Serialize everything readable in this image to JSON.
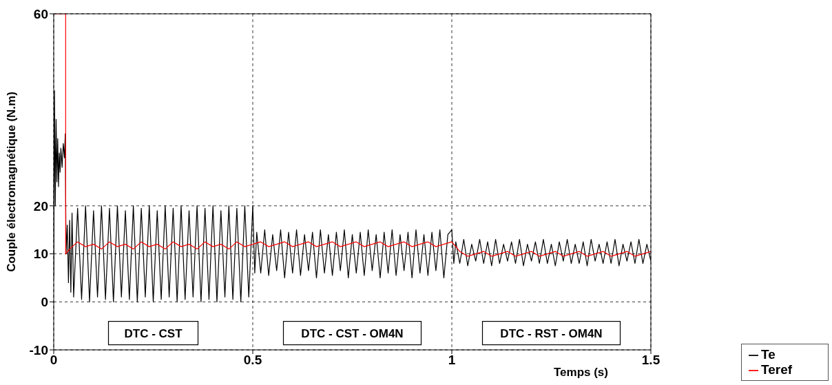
{
  "chart_data": {
    "type": "line",
    "xlabel": "Temps (s)",
    "ylabel": "Couple électromagnétique (N.m)",
    "xlim": [
      0,
      1.5
    ],
    "xticks": [
      0,
      0.5,
      1,
      1.5
    ],
    "ylim": [
      -10,
      60
    ],
    "yticks": [
      -10,
      0,
      10,
      20,
      60
    ],
    "grid": true,
    "line_style": "solid",
    "marker": "none",
    "legend": "bottom right",
    "series": [
      {
        "name": "Te",
        "color": "#000000",
        "x": [
          0,
          0.002,
          0.004,
          0.006,
          0.008,
          0.01,
          0.012,
          0.014,
          0.016,
          0.018,
          0.021,
          0.024,
          0.027,
          0.029,
          0.031,
          0.034,
          0.037,
          0.04,
          0.043,
          0.046,
          0.05,
          0.06,
          0.07,
          0.08,
          0.09,
          0.1,
          0.11,
          0.12,
          0.13,
          0.14,
          0.15,
          0.16,
          0.17,
          0.18,
          0.19,
          0.2,
          0.21,
          0.22,
          0.23,
          0.24,
          0.25,
          0.26,
          0.27,
          0.28,
          0.29,
          0.3,
          0.31,
          0.32,
          0.33,
          0.34,
          0.35,
          0.36,
          0.37,
          0.38,
          0.39,
          0.4,
          0.41,
          0.42,
          0.43,
          0.44,
          0.45,
          0.46,
          0.47,
          0.48,
          0.49,
          0.5,
          0.505,
          0.51,
          0.52,
          0.53,
          0.54,
          0.55,
          0.56,
          0.57,
          0.58,
          0.59,
          0.6,
          0.61,
          0.62,
          0.63,
          0.64,
          0.65,
          0.66,
          0.67,
          0.68,
          0.69,
          0.7,
          0.71,
          0.72,
          0.73,
          0.74,
          0.75,
          0.76,
          0.77,
          0.78,
          0.79,
          0.8,
          0.81,
          0.82,
          0.83,
          0.84,
          0.85,
          0.86,
          0.87,
          0.88,
          0.89,
          0.9,
          0.91,
          0.92,
          0.93,
          0.94,
          0.95,
          0.96,
          0.97,
          0.98,
          0.99,
          1,
          1.005,
          1.01,
          1.02,
          1.03,
          1.04,
          1.05,
          1.06,
          1.07,
          1.08,
          1.09,
          1.1,
          1.11,
          1.12,
          1.13,
          1.14,
          1.15,
          1.16,
          1.17,
          1.18,
          1.19,
          1.2,
          1.21,
          1.22,
          1.23,
          1.24,
          1.25,
          1.26,
          1.27,
          1.28,
          1.29,
          1.3,
          1.31,
          1.32,
          1.33,
          1.34,
          1.35,
          1.36,
          1.37,
          1.38,
          1.39,
          1.4,
          1.41,
          1.42,
          1.43,
          1.44,
          1.45,
          1.46,
          1.47,
          1.48,
          1.49,
          1.5
        ],
        "values": [
          5,
          44,
          20,
          38,
          25,
          34,
          24,
          31,
          27,
          32,
          28,
          33,
          30,
          35,
          10,
          16,
          4,
          17,
          2,
          18.5,
          1,
          19.5,
          0.5,
          20,
          0,
          19,
          1,
          20,
          0.5,
          19.5,
          0,
          20,
          1,
          19,
          0.5,
          20,
          0,
          19.5,
          1,
          20,
          0,
          19,
          0.5,
          20,
          1,
          19.5,
          0,
          20,
          0.5,
          19,
          1,
          20,
          0,
          19.5,
          0.5,
          20,
          0,
          19,
          1,
          20,
          0.5,
          19.5,
          0,
          20,
          1,
          20,
          6,
          14.5,
          6,
          15,
          5.5,
          14,
          6.5,
          15,
          5,
          14.5,
          6,
          15,
          5.5,
          14,
          6.5,
          14.5,
          5,
          15,
          6,
          14,
          5.5,
          14.5,
          6.5,
          15,
          5,
          14,
          6,
          14.5,
          5.5,
          15,
          6.5,
          14,
          5,
          14.5,
          6,
          15,
          5.5,
          14,
          6.5,
          14.5,
          5,
          15,
          6,
          14,
          5.5,
          14.5,
          6.5,
          15,
          5,
          14,
          15,
          8,
          12.5,
          8,
          13,
          7.5,
          12,
          8.5,
          13,
          8,
          12.5,
          7.5,
          13,
          8,
          12,
          8.5,
          12.5,
          8,
          13,
          7.5,
          12,
          8.5,
          12.5,
          8,
          13,
          8,
          12,
          7.5,
          12.5,
          8.5,
          13,
          8,
          12,
          8,
          12.5,
          7.5,
          13,
          8.5,
          12,
          8,
          12.5,
          8,
          13,
          7.5,
          12,
          8.5,
          12.5,
          8,
          13,
          8,
          12,
          8.5
        ]
      },
      {
        "name": "Teref",
        "color": "#ff0000",
        "x": [
          0,
          0.03,
          0.03,
          0.04,
          0.06,
          0.08,
          0.1,
          0.12,
          0.14,
          0.16,
          0.18,
          0.2,
          0.22,
          0.24,
          0.26,
          0.28,
          0.3,
          0.32,
          0.34,
          0.36,
          0.38,
          0.4,
          0.42,
          0.44,
          0.46,
          0.48,
          0.5,
          0.52,
          0.54,
          0.56,
          0.58,
          0.6,
          0.62,
          0.64,
          0.66,
          0.68,
          0.7,
          0.72,
          0.74,
          0.76,
          0.78,
          0.8,
          0.82,
          0.84,
          0.86,
          0.88,
          0.9,
          0.92,
          0.94,
          0.96,
          0.98,
          1,
          1.02,
          1.04,
          1.06,
          1.08,
          1.1,
          1.12,
          1.14,
          1.16,
          1.18,
          1.2,
          1.22,
          1.24,
          1.26,
          1.28,
          1.3,
          1.32,
          1.34,
          1.36,
          1.38,
          1.4,
          1.42,
          1.44,
          1.46,
          1.48,
          1.5
        ],
        "values": [
          60,
          60,
          10,
          11,
          12.5,
          11.5,
          12,
          11,
          12.5,
          11.5,
          12,
          11,
          12.5,
          11.5,
          12,
          11,
          12.5,
          11.5,
          12,
          11,
          12.5,
          11.5,
          12,
          11,
          12.5,
          11.5,
          12,
          12.5,
          11.5,
          12,
          12.5,
          11.5,
          12,
          12.5,
          11.5,
          12,
          12.5,
          11.5,
          12,
          12.5,
          11.5,
          12,
          12.5,
          11.5,
          12,
          12.5,
          11.5,
          12,
          12.5,
          11.5,
          12,
          12.5,
          10.5,
          9.5,
          10,
          10.5,
          9.5,
          10,
          10.5,
          9.5,
          10,
          10.5,
          9.5,
          10,
          10.5,
          9.5,
          10,
          10.5,
          9.5,
          10,
          10.5,
          9.5,
          10,
          10.5,
          9.5,
          10,
          10.5
        ]
      }
    ],
    "annotations": [
      "DTC - CST",
      "DTC - CST - OM4N",
      "DTC - RST - OM4N"
    ]
  }
}
